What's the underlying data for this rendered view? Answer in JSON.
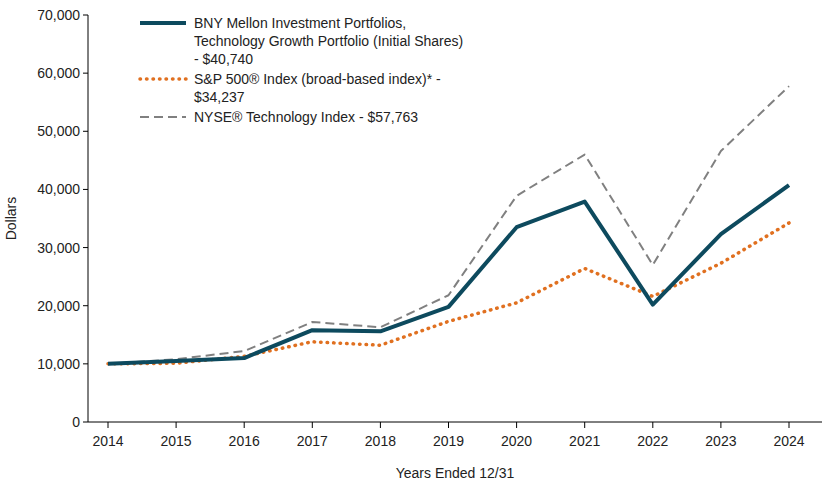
{
  "chart_data": {
    "type": "line",
    "x_label": "Years Ended 12/31",
    "y_label": "Dollars",
    "categories": [
      "2014",
      "2015",
      "2016",
      "2017",
      "2018",
      "2019",
      "2020",
      "2021",
      "2022",
      "2023",
      "2024"
    ],
    "series": [
      {
        "name": "BNY Mellon Investment Portfolios, Technology Growth Portfolio (Initial Shares) - $40,740",
        "color": "#0d4a5e",
        "line_style": "solid",
        "values": [
          10000,
          10500,
          11000,
          15800,
          15600,
          19800,
          33500,
          37900,
          20200,
          32300,
          40740
        ]
      },
      {
        "name": "S&P 500® Index (broad-based index)* - $34,237",
        "color": "#e07020",
        "line_style": "dotted",
        "values": [
          10000,
          10100,
          11300,
          13800,
          13200,
          17300,
          20500,
          26400,
          21600,
          27300,
          34237
        ]
      },
      {
        "name": "NYSE® Technology Index - $57,763",
        "color": "#808080",
        "line_style": "dashed",
        "values": [
          10000,
          10800,
          12200,
          17200,
          16300,
          21800,
          38900,
          46000,
          27000,
          46600,
          57763
        ]
      }
    ],
    "ylim": [
      0,
      70000
    ],
    "yticks": [
      0,
      {
        "value": 10000,
        "label": "10,000"
      },
      {
        "value": 20000,
        "label": "20,000"
      },
      {
        "value": 30000,
        "label": "30,000"
      },
      {
        "value": 40000,
        "label": "40,000"
      },
      {
        "value": 50000,
        "label": "50,000"
      },
      {
        "value": 60000,
        "label": "60,000"
      },
      {
        "value": 70000,
        "label": "70,000"
      }
    ],
    "grid": false,
    "legend": "upper left"
  }
}
